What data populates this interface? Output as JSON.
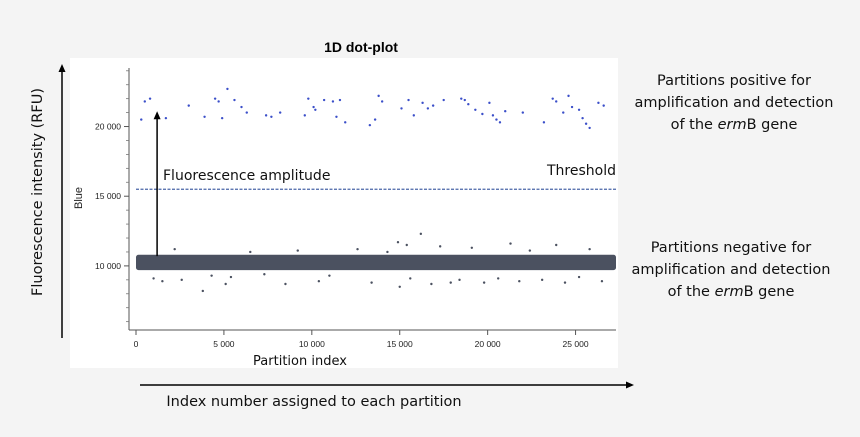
{
  "chart_data": {
    "type": "scatter",
    "title": "1D dot-plot",
    "xlabel": "Partition index",
    "ylabel": "Blue",
    "xlim": [
      0,
      27300
    ],
    "ylim": [
      5400,
      24200
    ],
    "x_ticks": [
      0,
      5000,
      10000,
      15000,
      20000,
      25000
    ],
    "x_tick_labels": [
      "0",
      "5 000",
      "10 000",
      "15 000",
      "20 000",
      "25 000"
    ],
    "y_ticks": [
      10000,
      15000,
      20000
    ],
    "y_tick_labels": [
      "10 000",
      "15 000",
      "20 000"
    ],
    "threshold": {
      "value": 15500,
      "label": "Threshold",
      "color": "#4a66a8"
    },
    "amplitude_arrow": {
      "label": "Fluorescence amplitude",
      "x": 1200,
      "from": 10700,
      "to": 21100
    },
    "negative_band": {
      "center": 10250,
      "halfwidth": 550,
      "color": "#4b5160"
    },
    "series": [
      {
        "name": "positive",
        "color": "#3b4fc9",
        "points": [
          [
            300,
            20500
          ],
          [
            500,
            21800
          ],
          [
            800,
            22000
          ],
          [
            1700,
            20600
          ],
          [
            3000,
            21500
          ],
          [
            3900,
            20700
          ],
          [
            4500,
            22000
          ],
          [
            4700,
            21800
          ],
          [
            4900,
            20600
          ],
          [
            5200,
            22700
          ],
          [
            5600,
            21900
          ],
          [
            6000,
            21400
          ],
          [
            6300,
            21000
          ],
          [
            7400,
            20800
          ],
          [
            7700,
            20700
          ],
          [
            8200,
            21000
          ],
          [
            9600,
            20800
          ],
          [
            9800,
            22000
          ],
          [
            10100,
            21400
          ],
          [
            10200,
            21200
          ],
          [
            10700,
            21900
          ],
          [
            11200,
            21800
          ],
          [
            11400,
            20700
          ],
          [
            11600,
            21900
          ],
          [
            11900,
            20300
          ],
          [
            13300,
            20100
          ],
          [
            13600,
            20500
          ],
          [
            13800,
            22200
          ],
          [
            14000,
            21800
          ],
          [
            15100,
            21300
          ],
          [
            15500,
            21900
          ],
          [
            15800,
            20800
          ],
          [
            16300,
            21700
          ],
          [
            16600,
            21300
          ],
          [
            16900,
            21500
          ],
          [
            17500,
            21900
          ],
          [
            18500,
            22000
          ],
          [
            18700,
            21900
          ],
          [
            18900,
            21600
          ],
          [
            19300,
            21200
          ],
          [
            19700,
            20900
          ],
          [
            20100,
            21700
          ],
          [
            20300,
            20800
          ],
          [
            20500,
            20500
          ],
          [
            20700,
            20300
          ],
          [
            21000,
            21100
          ],
          [
            22000,
            21000
          ],
          [
            23200,
            20300
          ],
          [
            23700,
            22000
          ],
          [
            23900,
            21800
          ],
          [
            24300,
            21000
          ],
          [
            24600,
            22200
          ],
          [
            24800,
            21400
          ],
          [
            25200,
            21200
          ],
          [
            25400,
            20600
          ],
          [
            25600,
            20200
          ],
          [
            25800,
            19900
          ],
          [
            26300,
            21700
          ],
          [
            26600,
            21500
          ]
        ]
      },
      {
        "name": "negative-outliers",
        "color": "#4b5160",
        "points": [
          [
            1000,
            9100
          ],
          [
            1500,
            8900
          ],
          [
            2200,
            11200
          ],
          [
            2600,
            9000
          ],
          [
            3800,
            8200
          ],
          [
            4300,
            9300
          ],
          [
            5100,
            8700
          ],
          [
            5400,
            9200
          ],
          [
            6500,
            11000
          ],
          [
            7300,
            9400
          ],
          [
            8500,
            8700
          ],
          [
            9200,
            11100
          ],
          [
            10400,
            8900
          ],
          [
            11000,
            9300
          ],
          [
            12600,
            11200
          ],
          [
            13400,
            8800
          ],
          [
            14300,
            11000
          ],
          [
            14900,
            11700
          ],
          [
            15000,
            8500
          ],
          [
            15400,
            11500
          ],
          [
            15600,
            9100
          ],
          [
            16200,
            12300
          ],
          [
            16800,
            8700
          ],
          [
            17300,
            11400
          ],
          [
            17900,
            8800
          ],
          [
            18400,
            9000
          ],
          [
            19100,
            11300
          ],
          [
            19800,
            8800
          ],
          [
            20600,
            9100
          ],
          [
            21300,
            11600
          ],
          [
            21800,
            8900
          ],
          [
            22400,
            11100
          ],
          [
            23100,
            9000
          ],
          [
            23900,
            11500
          ],
          [
            24400,
            8800
          ],
          [
            25200,
            9200
          ],
          [
            25800,
            11200
          ],
          [
            26500,
            8900
          ]
        ]
      }
    ]
  },
  "annotations": {
    "y_axis_title": "Fluorescence intensity (RFU)",
    "x_axis_title": "Index number assigned to each partition",
    "positive_note": [
      "Partitions positive for",
      "amplification and detection",
      "of the ",
      "erm",
      "B gene"
    ],
    "negative_note": [
      "Partitions negative for",
      "amplification and detection",
      "of the ",
      "erm",
      "B gene"
    ]
  }
}
